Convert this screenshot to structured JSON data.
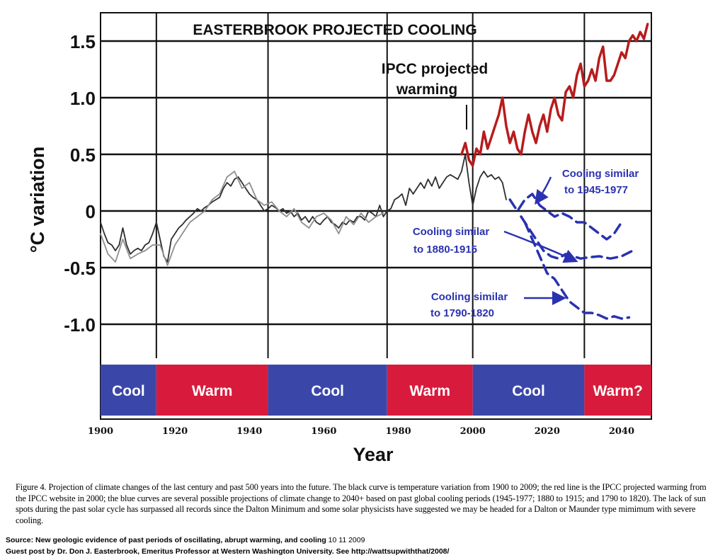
{
  "chart_data": {
    "type": "line",
    "title": "EASTERBROOK PROJECTED COOLING",
    "xlabel": "Year",
    "ylabel": "°C variation",
    "xlim": [
      1900,
      2048
    ],
    "ylim": [
      -1.3,
      1.75
    ],
    "grid": true,
    "x_ticks": [
      {
        "value": 1900,
        "label": "1900"
      },
      {
        "value": 1920,
        "label": "1920"
      },
      {
        "value": 1940,
        "label": "1940"
      },
      {
        "value": 1960,
        "label": "1960"
      },
      {
        "value": 1980,
        "label": "1980"
      },
      {
        "value": 2000,
        "label": "2000"
      },
      {
        "value": 2020,
        "label": "2020"
      },
      {
        "value": 2040,
        "label": "2040"
      }
    ],
    "y_ticks": [
      {
        "value": 1.5,
        "label": "1.5"
      },
      {
        "value": 1.0,
        "label": "1.0"
      },
      {
        "value": 0.5,
        "label": "0.5"
      },
      {
        "value": 0,
        "label": "0"
      },
      {
        "value": -0.5,
        "label": "-0.5"
      },
      {
        "value": -1.0,
        "label": "-1.0"
      }
    ],
    "vertical_lines": [
      1915,
      1945,
      1977,
      1998,
      2000,
      2030
    ],
    "periods": [
      {
        "label": "Cool",
        "start": 1900,
        "end": 1915,
        "color": "#3b47a8"
      },
      {
        "label": "Warm",
        "start": 1915,
        "end": 1945,
        "color": "#d81b3c"
      },
      {
        "label": "Cool",
        "start": 1945,
        "end": 1977,
        "color": "#3b47a8"
      },
      {
        "label": "Warm",
        "start": 1977,
        "end": 2000,
        "color": "#d81b3c"
      },
      {
        "label": "Cool",
        "start": 2000,
        "end": 2030,
        "color": "#3b47a8"
      },
      {
        "label": "Warm?",
        "start": 2030,
        "end": 2048,
        "color": "#d81b3c"
      }
    ],
    "series": [
      {
        "color": "#2e2e2e",
        "style": "solid",
        "x": [
          1900,
          1901,
          1902,
          1903,
          1904,
          1905,
          1906,
          1907,
          1908,
          1909,
          1910,
          1911,
          1912,
          1913,
          1914,
          1915,
          1916,
          1917,
          1918,
          1919,
          1920,
          1921,
          1922,
          1923,
          1924,
          1925,
          1926,
          1927,
          1928,
          1929,
          1930,
          1931,
          1932,
          1933,
          1934,
          1935,
          1936,
          1937,
          1938,
          1939,
          1940,
          1941,
          1942,
          1943,
          1944,
          1945,
          1946,
          1947,
          1948,
          1949,
          1950,
          1951,
          1952,
          1953,
          1954,
          1955,
          1956,
          1957,
          1958,
          1959,
          1960,
          1961,
          1962,
          1963,
          1964,
          1965,
          1966,
          1967,
          1968,
          1969,
          1970,
          1971,
          1972,
          1973,
          1974,
          1975,
          1976,
          1977,
          1978,
          1979,
          1980,
          1981,
          1982,
          1983,
          1984,
          1985,
          1986,
          1987,
          1988,
          1989,
          1990,
          1991,
          1992,
          1993,
          1994,
          1995,
          1996,
          1997,
          1998,
          1999,
          2000,
          2001,
          2002,
          2003,
          2004,
          2005,
          2006,
          2007,
          2008,
          2009
        ],
        "y": [
          -0.1,
          -0.2,
          -0.28,
          -0.3,
          -0.35,
          -0.3,
          -0.15,
          -0.3,
          -0.38,
          -0.35,
          -0.33,
          -0.35,
          -0.3,
          -0.28,
          -0.2,
          -0.1,
          -0.25,
          -0.4,
          -0.45,
          -0.25,
          -0.2,
          -0.15,
          -0.12,
          -0.08,
          -0.05,
          -0.02,
          0.02,
          0,
          0.03,
          0.05,
          0.08,
          0.1,
          0.12,
          0.2,
          0.25,
          0.22,
          0.28,
          0.3,
          0.25,
          0.2,
          0.15,
          0.12,
          0.1,
          0.05,
          0.0,
          0.02,
          0.05,
          0.03,
          0,
          0.02,
          -0.02,
          0.0,
          -0.05,
          -0.02,
          -0.08,
          -0.05,
          -0.1,
          -0.05,
          -0.1,
          -0.12,
          -0.08,
          -0.05,
          -0.1,
          -0.12,
          -0.15,
          -0.1,
          -0.12,
          -0.08,
          -0.1,
          -0.05,
          -0.05,
          -0.08,
          0.0,
          -0.02,
          -0.05,
          0.05,
          -0.05,
          0.0,
          0.02,
          0.1,
          0.12,
          0.15,
          0.05,
          0.2,
          0.15,
          0.2,
          0.25,
          0.2,
          0.28,
          0.22,
          0.3,
          0.2,
          0.25,
          0.3,
          0.32,
          0.3,
          0.28,
          0.35,
          0.5,
          0.25,
          0.05,
          0.2,
          0.3,
          0.35,
          0.3,
          0.32,
          0.28,
          0.3,
          0.25,
          0.1
        ]
      },
      {
        "color": "#8f8f8f",
        "style": "solid",
        "x": [
          1900,
          1902,
          1904,
          1906,
          1908,
          1910,
          1912,
          1914,
          1916,
          1918,
          1920,
          1922,
          1924,
          1926,
          1928,
          1930,
          1932,
          1934,
          1936,
          1938,
          1940,
          1942,
          1944,
          1946,
          1948,
          1950,
          1952,
          1954,
          1956,
          1958,
          1960,
          1962,
          1964,
          1966,
          1968,
          1970,
          1972,
          1974,
          1976
        ],
        "y": [
          -0.2,
          -0.38,
          -0.45,
          -0.25,
          -0.42,
          -0.38,
          -0.35,
          -0.3,
          -0.3,
          -0.48,
          -0.3,
          -0.2,
          -0.1,
          -0.05,
          0.0,
          0.1,
          0.15,
          0.3,
          0.35,
          0.2,
          0.25,
          0.1,
          0.05,
          0.08,
          0.0,
          -0.05,
          0.02,
          -0.1,
          -0.15,
          -0.05,
          -0.02,
          -0.08,
          -0.2,
          -0.05,
          -0.12,
          -0.02,
          -0.1,
          -0.05,
          -0.02
        ]
      },
      {
        "color": "#b71c1c",
        "style": "solid",
        "x": [
          1997,
          1998,
          1999,
          2000,
          2001,
          2002,
          2003,
          2004,
          2005,
          2006,
          2007,
          2008,
          2009,
          2010,
          2011,
          2012,
          2013,
          2014,
          2015,
          2016,
          2017,
          2018,
          2019,
          2020,
          2021,
          2022,
          2023,
          2024,
          2025,
          2026,
          2027,
          2028,
          2029,
          2030,
          2031,
          2032,
          2033,
          2034,
          2035,
          2036,
          2037,
          2038,
          2039,
          2040,
          2041,
          2042,
          2043,
          2044,
          2045,
          2046,
          2047
        ],
        "y": [
          0.5,
          0.6,
          0.45,
          0.4,
          0.55,
          0.5,
          0.7,
          0.55,
          0.65,
          0.75,
          0.85,
          1.0,
          0.75,
          0.6,
          0.7,
          0.55,
          0.5,
          0.7,
          0.85,
          0.7,
          0.6,
          0.75,
          0.85,
          0.7,
          0.9,
          1.0,
          0.85,
          0.8,
          1.05,
          1.1,
          1.0,
          1.2,
          1.3,
          1.1,
          1.15,
          1.25,
          1.15,
          1.35,
          1.45,
          1.15,
          1.15,
          1.2,
          1.3,
          1.4,
          1.35,
          1.5,
          1.55,
          1.5,
          1.58,
          1.52,
          1.65
        ]
      },
      {
        "color": "#2a32b0",
        "style": "dashed",
        "x": [
          2010,
          2012,
          2014,
          2016,
          2018,
          2020,
          2022,
          2024,
          2026,
          2028,
          2030,
          2032,
          2034,
          2036,
          2038,
          2040
        ],
        "y": [
          0.1,
          0.0,
          0.1,
          0.15,
          0.05,
          0.0,
          -0.05,
          -0.02,
          -0.05,
          -0.1,
          -0.1,
          -0.15,
          -0.2,
          -0.25,
          -0.2,
          -0.1
        ]
      },
      {
        "color": "#2a32b0",
        "style": "dashed",
        "x": [
          2013,
          2015,
          2017,
          2019,
          2021,
          2023,
          2025,
          2027,
          2029,
          2031,
          2034,
          2037,
          2040,
          2043
        ],
        "y": [
          -0.05,
          -0.15,
          -0.25,
          -0.35,
          -0.4,
          -0.42,
          -0.38,
          -0.4,
          -0.42,
          -0.41,
          -0.4,
          -0.42,
          -0.4,
          -0.35
        ]
      },
      {
        "color": "#2a32b0",
        "style": "dashed",
        "x": [
          2014,
          2016,
          2018,
          2020,
          2022,
          2024,
          2026,
          2028,
          2030,
          2032,
          2034,
          2036,
          2038,
          2040,
          2042
        ],
        "y": [
          -0.1,
          -0.25,
          -0.4,
          -0.55,
          -0.6,
          -0.7,
          -0.8,
          -0.85,
          -0.9,
          -0.9,
          -0.92,
          -0.95,
          -0.93,
          -0.95,
          -0.94
        ]
      }
    ],
    "annotations": [
      {
        "text_lines": [
          "IPCC projected",
          "warming"
        ],
        "color": "#000000"
      },
      {
        "text_lines": [
          "Cooling similar",
          "to 1945-1977"
        ],
        "color": "#2a32b0"
      },
      {
        "text_lines": [
          "Cooling similar",
          "to 1880-1915"
        ],
        "color": "#2a32b0"
      },
      {
        "text_lines": [
          "Cooling similar",
          "to 1790-1820"
        ],
        "color": "#2a32b0"
      }
    ]
  },
  "caption": "Figure 4.  Projection of climate changes of the last century and past 500 years into the future.  The black curve is temperature variation from 1900 to 2009; the red line is the IPCC projected warming from the IPCC website in 2000; the blue curves are several possible projections of climate change to 2040+ based on past global cooling periods (1945-1977; 1880 to 1915; and 1790 to 1820).  The lack of sun spots during the past solar cycle has surpassed all records since the Dalton Minimum and some solar physicists have suggested we may be headed for a Dalton or Maunder type mimimum with severe cooling.",
  "source": {
    "bold": "Source: New geologic evidence of past periods of oscillating, abrupt warming, and cooling",
    "plain": "10 11 2009"
  },
  "guest_post": "Guest post by Dr. Don J. Easterbrook, Emeritus Professor at Western Washington University. See http://wattsupwiththat/2008/"
}
